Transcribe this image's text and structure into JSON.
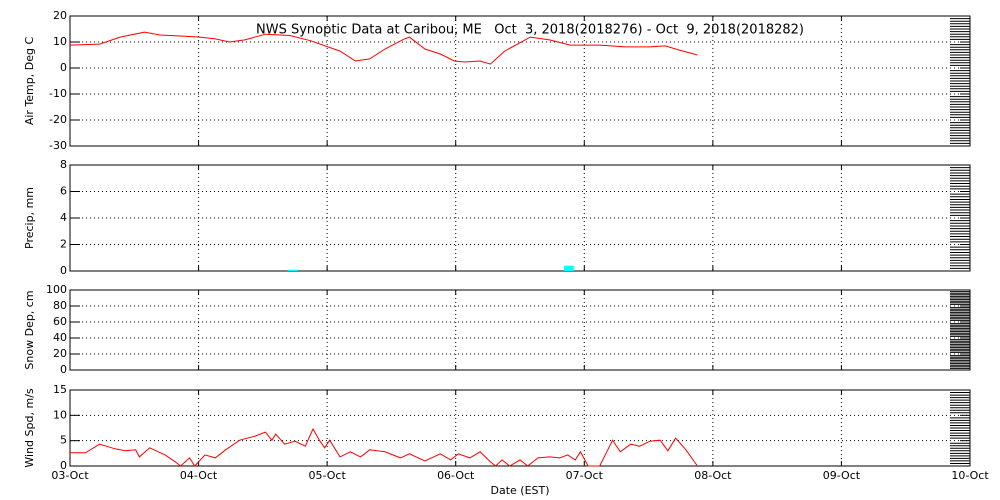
{
  "chart_data": [
    {
      "type": "line",
      "title": "NWS Synoptic Data at Caribou, ME   Oct  3, 2018(2018276) - Oct  9, 2018(2018282)",
      "y_label": "Air Temp, Deg C",
      "ylim": [
        -30,
        20
      ],
      "yticks": [
        -30,
        -20,
        -10,
        0,
        10,
        20
      ],
      "grid": true,
      "x": [
        0,
        0.23,
        0.39,
        0.58,
        0.7,
        0.86,
        1.01,
        1.13,
        1.24,
        1.36,
        1.52,
        1.71,
        1.87,
        2.1,
        2.22,
        2.33,
        2.45,
        2.6,
        2.64,
        2.76,
        2.88,
        2.99,
        3.07,
        3.19,
        3.27,
        3.38,
        3.58,
        3.73,
        3.89,
        4.12,
        4.32,
        4.51,
        4.63,
        4.74,
        4.88
      ],
      "values": [
        8.8,
        9.2,
        11.9,
        13.8,
        12.7,
        12.3,
        11.9,
        11.2,
        10,
        10.8,
        13,
        12.5,
        10.5,
        6.5,
        2.7,
        3.5,
        7.3,
        11.2,
        11.9,
        7.3,
        5.4,
        2.7,
        2.3,
        2.7,
        1.5,
        6.5,
        11.9,
        10.8,
        8.8,
        8.8,
        8.1,
        8.1,
        8.5,
        6.9,
        5
      ],
      "color": "#ff0000"
    },
    {
      "type": "bar",
      "y_label": "Precip, mm",
      "ylim": [
        0,
        8
      ],
      "yticks": [
        0,
        2,
        4,
        6,
        8
      ],
      "grid": true,
      "x": [
        1.73,
        3.88
      ],
      "values": [
        0.1,
        0.4
      ],
      "color": "#00ffff"
    },
    {
      "type": "empty",
      "y_label": "Snow Dep, cm",
      "ylim": [
        0,
        100
      ],
      "yticks": [
        0,
        20,
        40,
        60,
        80,
        100
      ],
      "grid": true
    },
    {
      "type": "line",
      "y_label": "Wind Spd, m/s",
      "x_label": "Date (EST)",
      "ylim": [
        0,
        15
      ],
      "yticks": [
        0,
        5,
        10,
        15
      ],
      "grid": true,
      "xlim": [
        0,
        7
      ],
      "xticks": [
        {
          "value": 0,
          "label": "03-Oct"
        },
        {
          "value": 1,
          "label": "04-Oct"
        },
        {
          "value": 2,
          "label": "05-Oct"
        },
        {
          "value": 3,
          "label": "06-Oct"
        },
        {
          "value": 4,
          "label": "07-Oct"
        },
        {
          "value": 5,
          "label": "08-Oct"
        },
        {
          "value": 6,
          "label": "09-Oct"
        },
        {
          "value": 7,
          "label": "10-Oct"
        }
      ],
      "x": [
        0,
        0.12,
        0.23,
        0.35,
        0.43,
        0.51,
        0.54,
        0.62,
        0.74,
        0.82,
        0.86,
        0.93,
        0.97,
        1.05,
        1.13,
        1.21,
        1.32,
        1.44,
        1.52,
        1.57,
        1.6,
        1.67,
        1.75,
        1.83,
        1.89,
        1.94,
        1.98,
        2.02,
        2.1,
        2.18,
        2.26,
        2.33,
        2.45,
        2.57,
        2.64,
        2.76,
        2.88,
        2.96,
        3.02,
        3.11,
        3.19,
        3.27,
        3.31,
        3.36,
        3.42,
        3.5,
        3.56,
        3.64,
        3.73,
        3.81,
        3.87,
        3.93,
        3.97,
        4.03,
        4.12,
        4.22,
        4.28,
        4.36,
        4.43,
        4.51,
        4.59,
        4.65,
        4.71,
        4.79,
        4.88
      ],
      "values": [
        2.6,
        2.6,
        4.3,
        3.4,
        3,
        3.2,
        1.8,
        3.6,
        2.2,
        0.8,
        0,
        1.6,
        0,
        2.2,
        1.6,
        3.2,
        5.1,
        5.9,
        6.7,
        5.1,
        6.3,
        4.3,
        4.9,
        3.9,
        7.3,
        5.1,
        3.6,
        5.1,
        1.8,
        2.8,
        1.8,
        3.2,
        2.8,
        1.6,
        2.4,
        1,
        2.4,
        1.2,
        2.4,
        1.6,
        2.8,
        0.8,
        0,
        1.2,
        0,
        1.2,
        0,
        1.6,
        1.8,
        1.6,
        2.2,
        1.2,
        2.8,
        0,
        0,
        5.1,
        2.8,
        4.3,
        3.9,
        4.9,
        5.1,
        3,
        5.5,
        3.2,
        0
      ],
      "color": "#ff0000"
    }
  ]
}
